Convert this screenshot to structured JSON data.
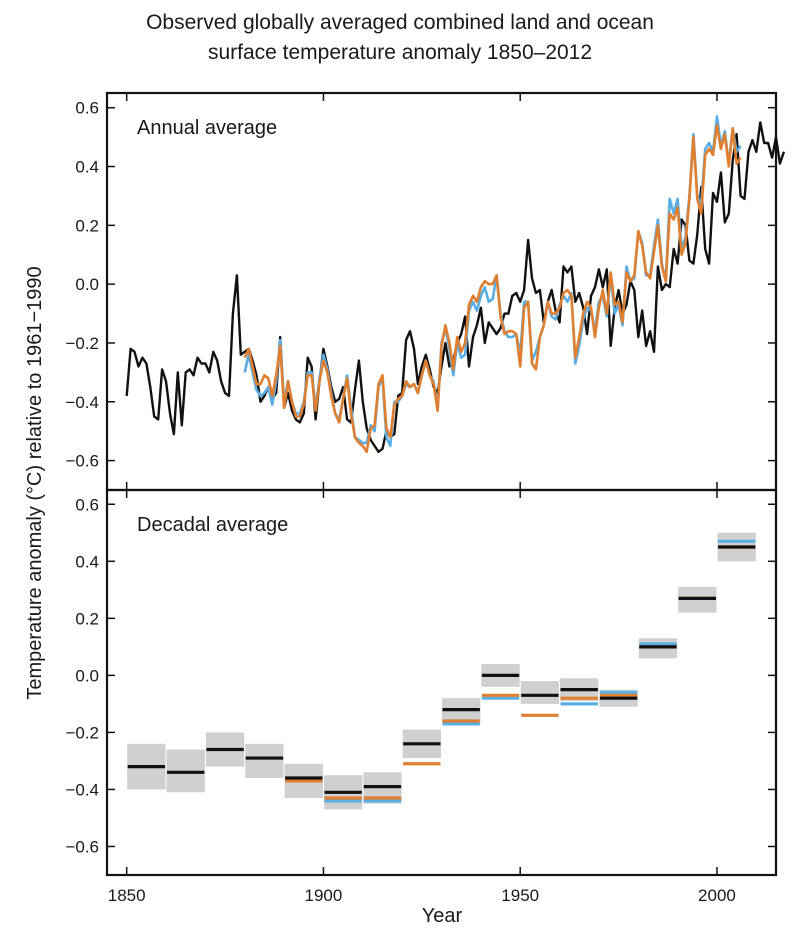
{
  "title_line1": "Observed globally averaged combined land and ocean",
  "title_line2": "surface temperature anomaly 1850–2012",
  "ylabel": "Temperature anomaly (°C) relative to 1961−1990",
  "xlabel": "Year",
  "colors": {
    "black": "#111111",
    "blue": "#5aaee6",
    "orange": "#e07f30",
    "band": "#c8c8c8"
  },
  "chart_data": [
    {
      "type": "line",
      "panel_label": "Annual average",
      "xlim": [
        1845,
        2015
      ],
      "ylim": [
        -0.7,
        0.65
      ],
      "yticks": [
        -0.6,
        -0.4,
        -0.2,
        0.0,
        0.2,
        0.4,
        0.6
      ],
      "yticklabels": [
        "−0.6",
        "−0.4",
        "−0.2",
        "0.0",
        "0.2",
        "0.4",
        "0.6"
      ],
      "series": [
        {
          "color": "black",
          "start_year": 1850,
          "values": [
            -0.38,
            -0.22,
            -0.23,
            -0.28,
            -0.25,
            -0.27,
            -0.35,
            -0.45,
            -0.46,
            -0.29,
            -0.33,
            -0.44,
            -0.51,
            -0.3,
            -0.48,
            -0.3,
            -0.29,
            -0.31,
            -0.25,
            -0.27,
            -0.27,
            -0.3,
            -0.23,
            -0.26,
            -0.33,
            -0.37,
            -0.38,
            -0.1,
            0.03,
            -0.24,
            -0.23,
            -0.22,
            -0.26,
            -0.31,
            -0.4,
            -0.38,
            -0.35,
            -0.39,
            -0.37,
            -0.18,
            -0.42,
            -0.37,
            -0.43,
            -0.46,
            -0.47,
            -0.44,
            -0.25,
            -0.28,
            -0.46,
            -0.33,
            -0.22,
            -0.28,
            -0.35,
            -0.4,
            -0.39,
            -0.35,
            -0.46,
            -0.47,
            -0.36,
            -0.26,
            -0.4,
            -0.49,
            -0.53,
            -0.55,
            -0.57,
            -0.56,
            -0.5,
            -0.52,
            -0.51,
            -0.38,
            -0.37,
            -0.19,
            -0.16,
            -0.22,
            -0.34,
            -0.28,
            -0.24,
            -0.29,
            -0.35,
            -0.37,
            -0.28,
            -0.2,
            -0.28,
            -0.26,
            -0.2,
            -0.17,
            -0.11,
            -0.28,
            -0.18,
            -0.14,
            -0.08,
            -0.2,
            -0.13,
            -0.15,
            -0.17,
            -0.15,
            -0.1,
            -0.1,
            -0.04,
            -0.03,
            -0.06,
            -0.02,
            0.15,
            0.02,
            -0.03,
            -0.02,
            -0.13,
            -0.06,
            -0.02,
            -0.09,
            -0.13,
            0.06,
            0.04,
            0.06,
            -0.06,
            -0.03,
            -0.08,
            -0.17,
            -0.04,
            -0.01,
            0.05,
            -0.01,
            0.05,
            -0.21,
            -0.08,
            -0.02,
            -0.1,
            -0.07,
            0.01,
            -0.02,
            -0.18,
            -0.09,
            -0.21,
            -0.16,
            -0.23,
            0.06,
            -0.02,
            0.0,
            -0.01,
            0.12,
            0.07,
            0.22,
            0.2,
            0.08,
            0.07,
            0.17,
            0.33,
            0.12,
            0.07,
            0.31,
            0.28,
            0.38,
            0.21,
            0.24,
            0.42,
            0.51,
            0.3,
            0.29,
            0.45,
            0.49,
            0.45,
            0.55,
            0.48,
            0.48,
            0.43,
            0.5,
            0.41,
            0.45
          ]
        },
        {
          "color": "blue",
          "start_year": 1880,
          "values": [
            -0.3,
            -0.24,
            -0.3,
            -0.36,
            -0.38,
            -0.37,
            -0.35,
            -0.41,
            -0.33,
            -0.19,
            -0.4,
            -0.33,
            -0.4,
            -0.44,
            -0.44,
            -0.4,
            -0.3,
            -0.3,
            -0.42,
            -0.32,
            -0.24,
            -0.29,
            -0.37,
            -0.44,
            -0.46,
            -0.39,
            -0.31,
            -0.42,
            -0.52,
            -0.53,
            -0.54,
            -0.54,
            -0.48,
            -0.5,
            -0.35,
            -0.32,
            -0.52,
            -0.55,
            -0.4,
            -0.4,
            -0.38,
            -0.34,
            -0.35,
            -0.34,
            -0.37,
            -0.31,
            -0.26,
            -0.31,
            -0.33,
            -0.43,
            -0.2,
            -0.15,
            -0.22,
            -0.31,
            -0.2,
            -0.25,
            -0.24,
            -0.09,
            -0.06,
            -0.09,
            -0.04,
            -0.01,
            -0.06,
            -0.05,
            0.03,
            -0.1,
            -0.16,
            -0.18,
            -0.18,
            -0.17,
            -0.24,
            -0.06,
            -0.06,
            -0.26,
            -0.23,
            -0.18,
            -0.14,
            -0.06,
            -0.11,
            -0.12,
            -0.07,
            -0.04,
            -0.06,
            -0.03,
            -0.27,
            -0.21,
            -0.12,
            -0.08,
            -0.09,
            -0.16,
            -0.06,
            -0.04,
            -0.11,
            0.03,
            -0.1,
            -0.07,
            -0.14,
            0.06,
            0.01,
            0.02,
            0.18,
            0.14,
            0.03,
            0.03,
            0.13,
            0.22,
            0.07,
            0.01,
            0.29,
            0.24,
            0.29,
            0.12,
            0.16,
            0.3,
            0.51,
            0.3,
            0.27,
            0.46,
            0.48,
            0.45,
            0.57,
            0.47,
            0.52,
            0.41,
            0.53,
            0.45,
            0.47
          ]
        },
        {
          "color": "orange",
          "start_year": 1880,
          "values": [
            -0.25,
            -0.22,
            -0.28,
            -0.34,
            -0.34,
            -0.31,
            -0.32,
            -0.38,
            -0.31,
            -0.21,
            -0.42,
            -0.33,
            -0.4,
            -0.45,
            -0.45,
            -0.41,
            -0.31,
            -0.31,
            -0.43,
            -0.33,
            -0.26,
            -0.3,
            -0.38,
            -0.44,
            -0.47,
            -0.39,
            -0.32,
            -0.44,
            -0.52,
            -0.54,
            -0.55,
            -0.57,
            -0.49,
            -0.48,
            -0.34,
            -0.31,
            -0.49,
            -0.52,
            -0.41,
            -0.39,
            -0.38,
            -0.33,
            -0.35,
            -0.34,
            -0.37,
            -0.31,
            -0.26,
            -0.31,
            -0.34,
            -0.43,
            -0.21,
            -0.14,
            -0.2,
            -0.29,
            -0.18,
            -0.23,
            -0.2,
            -0.07,
            -0.04,
            -0.06,
            -0.01,
            0.01,
            0.0,
            0.0,
            0.03,
            -0.11,
            -0.17,
            -0.16,
            -0.16,
            -0.17,
            -0.28,
            -0.08,
            -0.06,
            -0.27,
            -0.29,
            -0.18,
            -0.14,
            -0.06,
            -0.1,
            -0.1,
            -0.08,
            -0.03,
            -0.02,
            -0.04,
            -0.25,
            -0.18,
            -0.1,
            -0.06,
            -0.08,
            -0.18,
            -0.08,
            -0.02,
            -0.1,
            0.04,
            -0.07,
            -0.06,
            -0.13,
            0.04,
            0.01,
            0.03,
            0.18,
            0.13,
            0.04,
            0.02,
            0.11,
            0.2,
            0.06,
            0.01,
            0.24,
            0.22,
            0.26,
            0.1,
            0.14,
            0.29,
            0.5,
            0.29,
            0.24,
            0.44,
            0.46,
            0.44,
            0.54,
            0.46,
            0.51,
            0.4,
            0.53,
            0.41,
            0.43
          ]
        }
      ]
    },
    {
      "type": "bar",
      "panel_label": "Decadal average",
      "xlim": [
        1845,
        2015
      ],
      "ylim": [
        -0.7,
        0.65
      ],
      "yticks": [
        -0.6,
        -0.4,
        -0.2,
        0.0,
        0.2,
        0.4,
        0.6
      ],
      "yticklabels": [
        "−0.6",
        "−0.4",
        "−0.2",
        "0.0",
        "0.2",
        "0.4",
        "0.6"
      ],
      "xticks": [
        1850,
        1900,
        1950,
        2000
      ],
      "xticklabels": [
        "1850",
        "1900",
        "1950",
        "2000"
      ],
      "decades": [
        {
          "start": 1850,
          "black": -0.32,
          "lo": -0.4,
          "hi": -0.24
        },
        {
          "start": 1860,
          "black": -0.34,
          "lo": -0.41,
          "hi": -0.26
        },
        {
          "start": 1870,
          "black": -0.26,
          "lo": -0.32,
          "hi": -0.2
        },
        {
          "start": 1880,
          "black": -0.29,
          "orange": -0.29,
          "lo": -0.36,
          "hi": -0.24
        },
        {
          "start": 1890,
          "black": -0.36,
          "orange": -0.37,
          "lo": -0.43,
          "hi": -0.31
        },
        {
          "start": 1900,
          "black": -0.41,
          "blue": -0.44,
          "orange": -0.43,
          "lo": -0.47,
          "hi": -0.35
        },
        {
          "start": 1910,
          "black": -0.39,
          "blue": -0.44,
          "orange": -0.43,
          "lo": -0.45,
          "hi": -0.34
        },
        {
          "start": 1920,
          "black": -0.24,
          "orange": -0.31,
          "lo": -0.29,
          "hi": -0.19
        },
        {
          "start": 1930,
          "black": -0.12,
          "blue": -0.17,
          "orange": -0.16,
          "lo": -0.17,
          "hi": -0.08
        },
        {
          "start": 1940,
          "black": 0.0,
          "blue": -0.08,
          "orange": -0.07,
          "lo": -0.04,
          "hi": 0.04
        },
        {
          "start": 1950,
          "black": -0.07,
          "orange": -0.14,
          "lo": -0.1,
          "hi": -0.02
        },
        {
          "start": 1960,
          "black": -0.05,
          "blue": -0.1,
          "orange": -0.08,
          "lo": -0.09,
          "hi": -0.01
        },
        {
          "start": 1970,
          "black": -0.08,
          "blue": -0.06,
          "orange": -0.07,
          "lo": -0.11,
          "hi": -0.05
        },
        {
          "start": 1980,
          "black": 0.1,
          "blue": 0.11,
          "orange": 0.1,
          "lo": 0.06,
          "hi": 0.13
        },
        {
          "start": 1990,
          "black": 0.27,
          "blue": 0.27,
          "orange": 0.27,
          "lo": 0.22,
          "hi": 0.31
        },
        {
          "start": 2000,
          "black": 0.45,
          "blue": 0.47,
          "orange": 0.45,
          "lo": 0.4,
          "hi": 0.5
        }
      ]
    }
  ]
}
